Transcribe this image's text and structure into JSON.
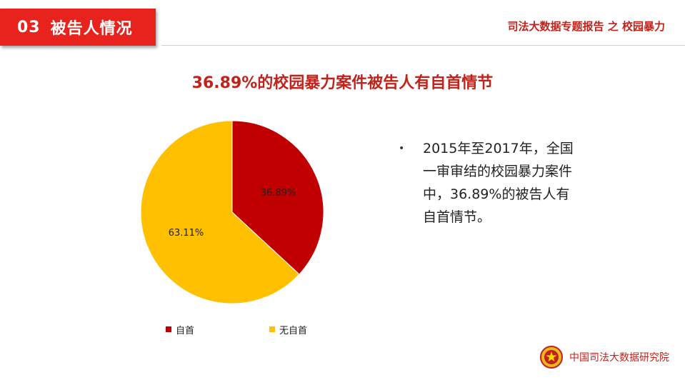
{
  "header": {
    "section_number": "03",
    "section_title": "被告人情况",
    "report_title": "司法大数据专题报告 之 校园暴力"
  },
  "headline": "36.89%的校园暴力案件被告人有自首情节",
  "chart_data": {
    "type": "pie",
    "title": "",
    "categories": [
      "自首",
      "无自首"
    ],
    "values": [
      36.89,
      63.11
    ],
    "labels": [
      "36.89%",
      "63.11%"
    ],
    "colors": [
      "#c00000",
      "#ffc000"
    ],
    "legend": "bottom"
  },
  "bullet": {
    "text": "2015年至2017年，全国一审审结的校园暴力案件中，36.89%的被告人有自首情节。"
  },
  "footer": {
    "org_name": "中国司法大数据研究院",
    "emblem_icon": "national-emblem-icon"
  }
}
